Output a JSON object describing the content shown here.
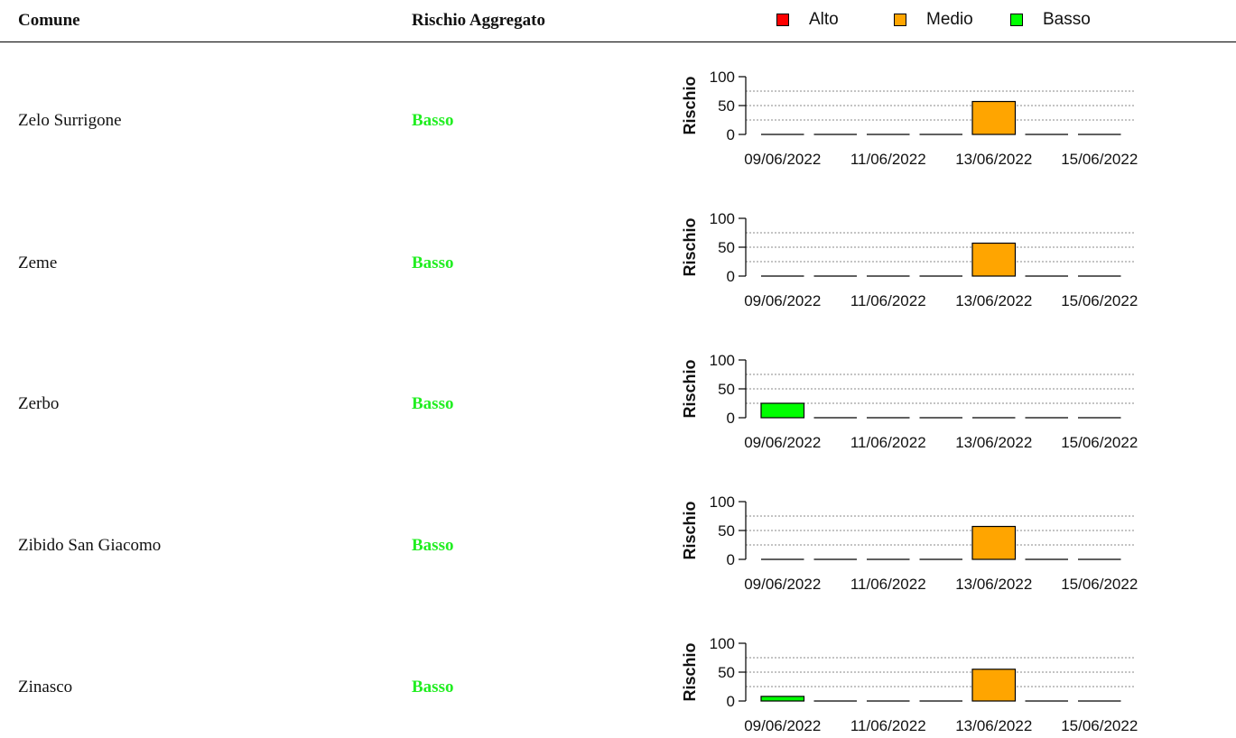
{
  "table": {
    "header": {
      "comune": "Comune",
      "rischio_aggregato": "Rischio Aggregato"
    },
    "rows": [
      {
        "comune": "Zelo Surrigone",
        "rischio": "Basso"
      },
      {
        "comune": "Zeme",
        "rischio": "Basso"
      },
      {
        "comune": "Zerbo",
        "rischio": "Basso"
      },
      {
        "comune": "Zibido San Giacomo",
        "rischio": "Basso"
      },
      {
        "comune": "Zinasco",
        "rischio": "Basso"
      }
    ]
  },
  "legend": [
    {
      "label": "Alto",
      "color": "#ff0000"
    },
    {
      "label": "Medio",
      "color": "#ffa500"
    },
    {
      "label": "Basso",
      "color": "#00ff00"
    }
  ],
  "colors": {
    "basso_text": "#22ee22",
    "alto": "#ff0000",
    "medio": "#ffa500",
    "basso": "#00ff00"
  },
  "chart_data": [
    {
      "type": "bar",
      "categories": [
        "09/06/2022",
        "10/06/2022",
        "11/06/2022",
        "12/06/2022",
        "13/06/2022",
        "14/06/2022",
        "15/06/2022"
      ],
      "tick_labels": [
        "09/06/2022",
        "11/06/2022",
        "13/06/2022",
        "15/06/2022"
      ],
      "values": [
        0,
        0,
        0,
        0,
        57,
        0,
        0
      ],
      "levels": [
        "Basso",
        "Basso",
        "Basso",
        "Basso",
        "Medio",
        "Basso",
        "Basso"
      ],
      "ylabel": "Rischio",
      "ylim": [
        0,
        100
      ],
      "yticks": [
        0,
        50,
        100
      ],
      "gridlines": [
        25,
        50,
        75
      ]
    },
    {
      "type": "bar",
      "categories": [
        "09/06/2022",
        "10/06/2022",
        "11/06/2022",
        "12/06/2022",
        "13/06/2022",
        "14/06/2022",
        "15/06/2022"
      ],
      "tick_labels": [
        "09/06/2022",
        "11/06/2022",
        "13/06/2022",
        "15/06/2022"
      ],
      "values": [
        0,
        0,
        0,
        0,
        57,
        0,
        0
      ],
      "levels": [
        "Basso",
        "Basso",
        "Basso",
        "Basso",
        "Medio",
        "Basso",
        "Basso"
      ],
      "ylabel": "Rischio",
      "ylim": [
        0,
        100
      ],
      "yticks": [
        0,
        50,
        100
      ],
      "gridlines": [
        25,
        50,
        75
      ]
    },
    {
      "type": "bar",
      "categories": [
        "09/06/2022",
        "10/06/2022",
        "11/06/2022",
        "12/06/2022",
        "13/06/2022",
        "14/06/2022",
        "15/06/2022"
      ],
      "tick_labels": [
        "09/06/2022",
        "11/06/2022",
        "13/06/2022",
        "15/06/2022"
      ],
      "values": [
        25,
        0,
        0,
        0,
        0,
        0,
        0
      ],
      "levels": [
        "Basso",
        "Basso",
        "Basso",
        "Basso",
        "Basso",
        "Basso",
        "Basso"
      ],
      "ylabel": "Rischio",
      "ylim": [
        0,
        100
      ],
      "yticks": [
        0,
        50,
        100
      ],
      "gridlines": [
        25,
        50,
        75
      ]
    },
    {
      "type": "bar",
      "categories": [
        "09/06/2022",
        "10/06/2022",
        "11/06/2022",
        "12/06/2022",
        "13/06/2022",
        "14/06/2022",
        "15/06/2022"
      ],
      "tick_labels": [
        "09/06/2022",
        "11/06/2022",
        "13/06/2022",
        "15/06/2022"
      ],
      "values": [
        0,
        0,
        0,
        0,
        57,
        0,
        0
      ],
      "levels": [
        "Basso",
        "Basso",
        "Basso",
        "Basso",
        "Medio",
        "Basso",
        "Basso"
      ],
      "ylabel": "Rischio",
      "ylim": [
        0,
        100
      ],
      "yticks": [
        0,
        50,
        100
      ],
      "gridlines": [
        25,
        50,
        75
      ]
    },
    {
      "type": "bar",
      "categories": [
        "09/06/2022",
        "10/06/2022",
        "11/06/2022",
        "12/06/2022",
        "13/06/2022",
        "14/06/2022",
        "15/06/2022"
      ],
      "tick_labels": [
        "09/06/2022",
        "11/06/2022",
        "13/06/2022",
        "15/06/2022"
      ],
      "values": [
        8,
        0,
        0,
        0,
        55,
        0,
        0
      ],
      "levels": [
        "Basso",
        "Basso",
        "Basso",
        "Basso",
        "Medio",
        "Basso",
        "Basso"
      ],
      "ylabel": "Rischio",
      "ylim": [
        0,
        100
      ],
      "yticks": [
        0,
        50,
        100
      ],
      "gridlines": [
        25,
        50,
        75
      ]
    }
  ]
}
